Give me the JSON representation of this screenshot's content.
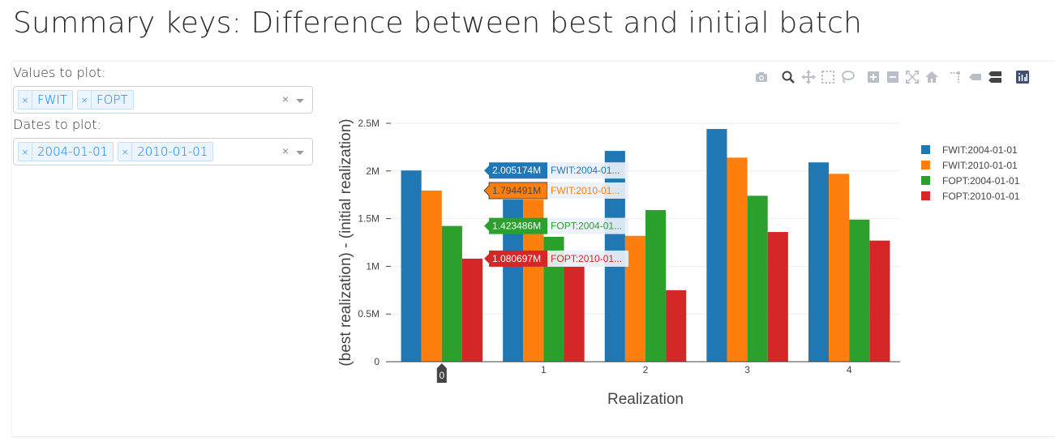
{
  "page": {
    "title": "Summary keys: Difference between best and initial batch"
  },
  "controls": {
    "values_label": "Values to plot:",
    "values_selected": [
      "FWIT",
      "FOPT"
    ],
    "dates_label": "Dates to plot:",
    "dates_selected": [
      "2004-01-01",
      "2010-01-01"
    ],
    "remove_glyph": "×",
    "clear_glyph": "×"
  },
  "modebar": {
    "icons": [
      "camera-icon",
      "zoom-icon",
      "pan-icon",
      "box-select-icon",
      "lasso-select-icon",
      "zoom-in-icon",
      "zoom-out-icon",
      "autoscale-icon",
      "reset-axes-icon",
      "spike-lines-icon",
      "hover-closest-icon",
      "hover-compare-icon",
      "plotly-logo-icon"
    ]
  },
  "chart_data": {
    "type": "bar",
    "xlabel": "Realization",
    "ylabel": "(best realization) - (initial realization)",
    "categories": [
      "0",
      "1",
      "2",
      "3",
      "4"
    ],
    "ylim": [
      0,
      2500000
    ],
    "yticks": [
      0,
      500000,
      1000000,
      1500000,
      2000000,
      2500000
    ],
    "ytick_labels": [
      "0",
      "0.5M",
      "1M",
      "1.5M",
      "2M",
      "2.5M"
    ],
    "grid": true,
    "legend_position": "right",
    "series": [
      {
        "name": "FWIT:2004-01-01",
        "color": "#1f77b4",
        "values": [
          2005174,
          1700000,
          2210000,
          2440000,
          2090000
        ]
      },
      {
        "name": "FWIT:2010-01-01",
        "color": "#ff7f0e",
        "values": [
          1794491,
          1700000,
          1320000,
          2140000,
          1970000
        ]
      },
      {
        "name": "FOPT:2004-01-01",
        "color": "#2ca02c",
        "values": [
          1423486,
          1310000,
          1590000,
          1740000,
          1490000
        ]
      },
      {
        "name": "FOPT:2010-01-01",
        "color": "#d62728",
        "values": [
          1080697,
          1000000,
          750000,
          1360000,
          1270000
        ]
      }
    ],
    "hover": {
      "category": "0",
      "category_label": "0",
      "labels": [
        {
          "value": "2.005174M",
          "name": "FWIT:2004-01..."
        },
        {
          "value": "1.794491M",
          "name": "FWIT:2010-01..."
        },
        {
          "value": "1.423486M",
          "name": "FOPT:2004-01..."
        },
        {
          "value": "1.080697M",
          "name": "FOPT:2010-01..."
        }
      ]
    }
  }
}
